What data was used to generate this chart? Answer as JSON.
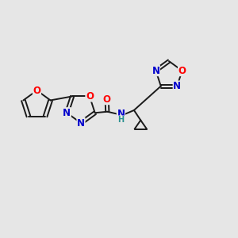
{
  "background_color": "#e6e6e6",
  "bond_color": "#1a1a1a",
  "atom_colors": {
    "O": "#ff0000",
    "N": "#0000cc",
    "C": "#1a1a1a",
    "H": "#2a9090"
  },
  "font_size": 8.5,
  "lw": 1.4
}
